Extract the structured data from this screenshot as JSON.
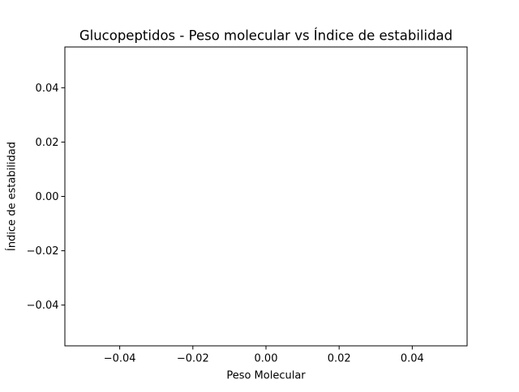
{
  "chart_data": {
    "type": "scatter",
    "title": "Glucopeptidos - Peso molecular vs Índice de estabilidad",
    "xlabel": "Peso Molecular",
    "ylabel": "Índice de estabilidad",
    "xlim": [
      -0.055,
      0.055
    ],
    "ylim": [
      -0.055,
      0.055
    ],
    "x_ticks": [
      -0.04,
      -0.02,
      0.0,
      0.02,
      0.04
    ],
    "y_ticks": [
      -0.04,
      -0.02,
      0.0,
      0.02,
      0.04
    ],
    "x_tick_labels": [
      "−0.04",
      "−0.02",
      "0.00",
      "0.02",
      "0.04"
    ],
    "y_tick_labels": [
      "−0.04",
      "−0.02",
      "0.00",
      "0.02",
      "0.04"
    ],
    "grid": false,
    "legend": "none",
    "points": []
  }
}
